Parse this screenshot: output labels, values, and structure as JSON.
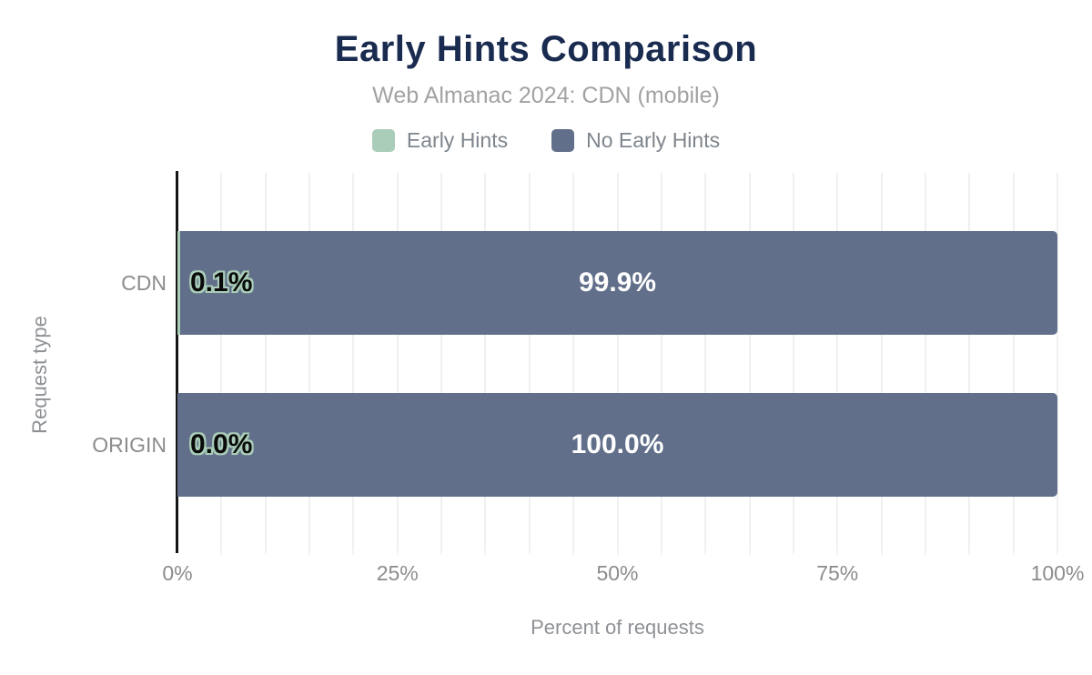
{
  "header": {
    "title": "Early Hints Comparison",
    "subtitle": "Web Almanac 2024: CDN (mobile)"
  },
  "legend": [
    {
      "label": "Early Hints",
      "color": "#A9CDB8"
    },
    {
      "label": "No Early Hints",
      "color": "#626F8A"
    }
  ],
  "chart_data": {
    "type": "bar",
    "orientation": "horizontal",
    "stacked": true,
    "title": "Early Hints Comparison",
    "subtitle": "Web Almanac 2024: CDN (mobile)",
    "categories": [
      "CDN",
      "ORIGIN"
    ],
    "series": [
      {
        "name": "Early Hints",
        "color": "#A9CDB8",
        "values": [
          0.1,
          0.0
        ],
        "data_labels": [
          "0.1%",
          "0.0%"
        ]
      },
      {
        "name": "No Early Hints",
        "color": "#626F8A",
        "values": [
          99.9,
          100.0
        ],
        "data_labels": [
          "99.9%",
          "100.0%"
        ]
      }
    ],
    "xlabel": "Percent of requests",
    "ylabel": "Request type",
    "xlim": [
      0,
      100
    ],
    "xticks": [
      "0%",
      "25%",
      "50%",
      "75%",
      "100%"
    ],
    "grid": "vertical minor gridlines every 5%",
    "legend_position": "top"
  },
  "colors": {
    "background": "#ffffff",
    "title": "#1A2B50",
    "subtitle": "#A2A2A2",
    "legend_text": "#7E858C",
    "muted_text": "#8C8C8C",
    "axis_title": "#8E9196",
    "grid": "#F0F0F0",
    "axis_line": "#151515",
    "early_hints": "#A9CDB8",
    "no_early_hints": "#626F8A"
  }
}
